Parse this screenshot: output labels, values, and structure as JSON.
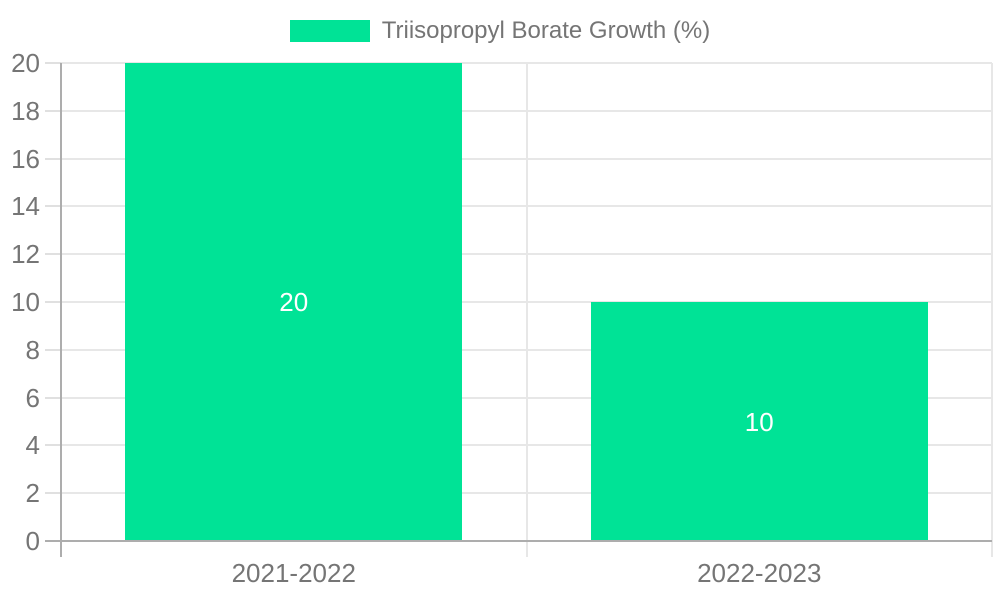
{
  "chart_data": {
    "type": "bar",
    "title": "",
    "legend": {
      "label": "Triisopropyl Borate Growth (%)",
      "swatch_color": "#00E396",
      "position": "top-center"
    },
    "categories": [
      "2021-2022",
      "2022-2023"
    ],
    "series": [
      {
        "name": "Triisopropyl Borate Growth (%)",
        "values": [
          20,
          10
        ],
        "color": "#00E396",
        "data_labels": [
          "20",
          "10"
        ],
        "data_label_color": "#ffffff"
      }
    ],
    "xlabel": "",
    "ylabel": "",
    "ylim": [
      0,
      20
    ],
    "yticks": [
      0,
      2,
      4,
      6,
      8,
      10,
      12,
      14,
      16,
      18,
      20
    ],
    "grid": true,
    "legend_visible": true,
    "colors": {
      "gridline": "#e7e7e7",
      "axis_line": "#adadad",
      "tick": "#e0e0e0",
      "text": "#757575",
      "background": "#ffffff"
    }
  }
}
